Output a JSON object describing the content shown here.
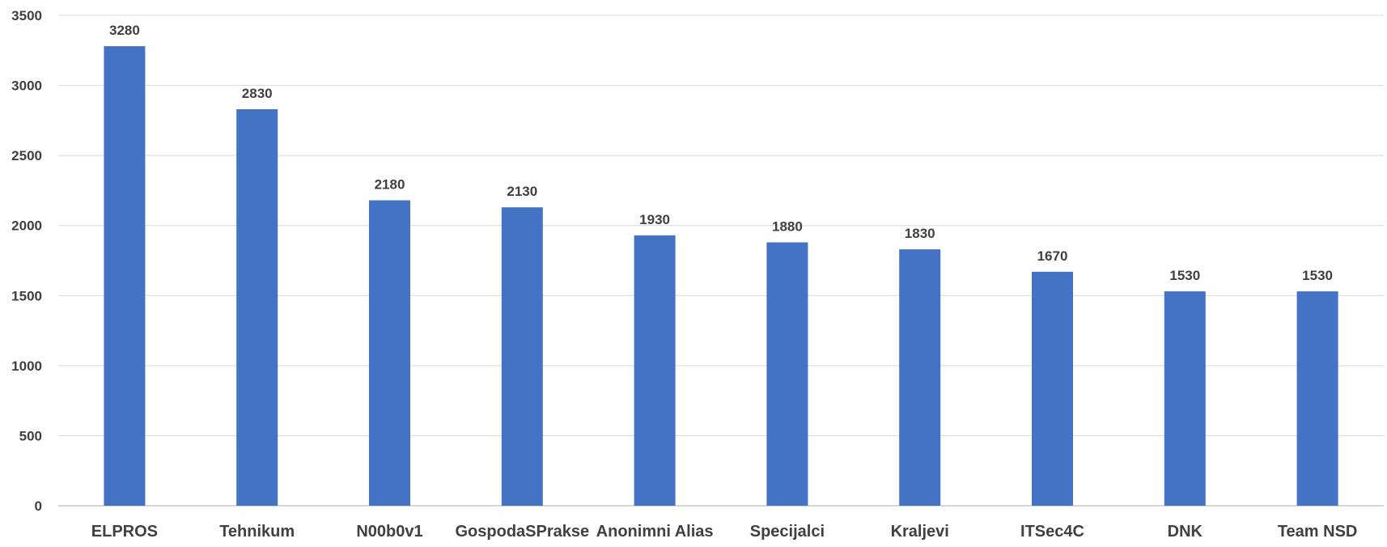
{
  "chart_data": {
    "type": "bar",
    "title": "",
    "xlabel": "",
    "ylabel": "",
    "categories": [
      "ELPROS",
      "Tehnikum",
      "N00b0v1",
      "GospodaSPrakse",
      "Anonimni Alias",
      "Specijalci",
      "Kraljevi",
      "ITSec4C",
      "DNK",
      "Team NSD"
    ],
    "values": [
      3280,
      2830,
      2180,
      2130,
      1930,
      1880,
      1830,
      1670,
      1530,
      1530
    ],
    "data_labels": [
      "3280",
      "2830",
      "2180",
      "2130",
      "1930",
      "1880",
      "1830",
      "1670",
      "1530",
      "1530"
    ],
    "ylim": [
      0,
      3500
    ],
    "yticks": [
      0,
      500,
      1000,
      1500,
      2000,
      2500,
      3000,
      3500
    ],
    "ytick_labels": [
      "0",
      "500",
      "1000",
      "1500",
      "2000",
      "2500",
      "3000",
      "3500"
    ],
    "grid": true,
    "bar_color": "#4472C4",
    "grid_color": "#D9D9D9",
    "text_color": "#404040"
  }
}
